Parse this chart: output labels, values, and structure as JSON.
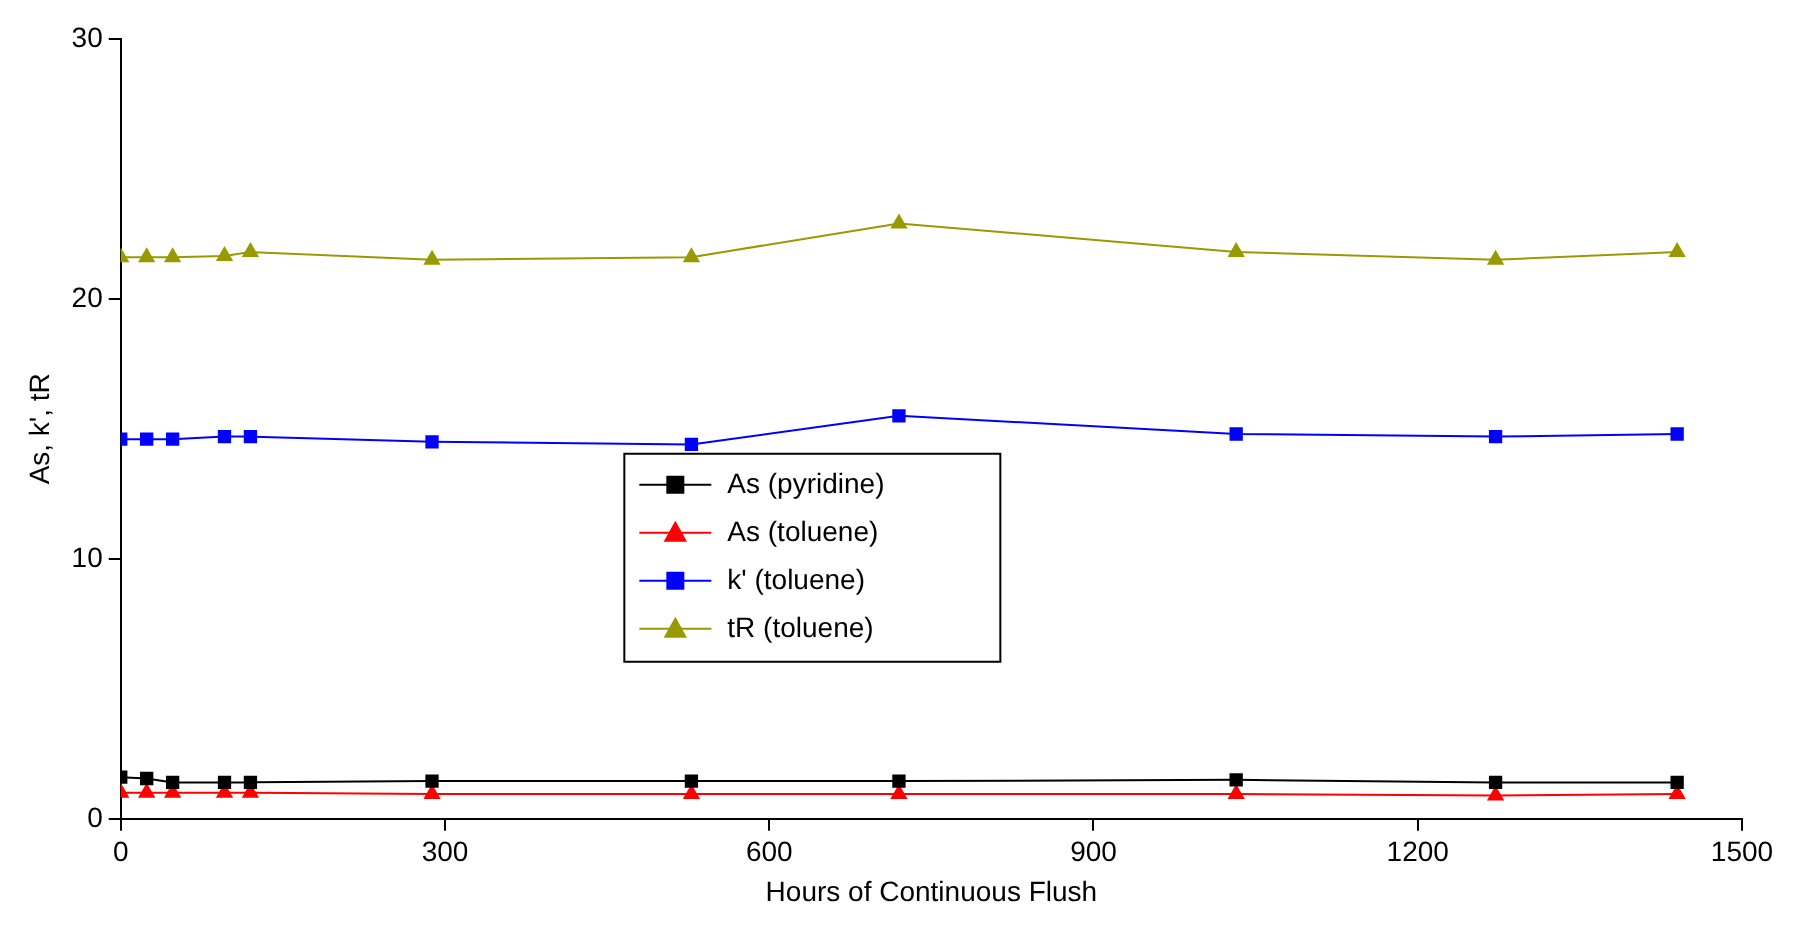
{
  "chart_data": {
    "type": "line",
    "xlabel": "Hours of Continuous Flush",
    "ylabel": "As, k', tR",
    "x": [
      0,
      24,
      48,
      96,
      120,
      288,
      528,
      720,
      1032,
      1272,
      1440
    ],
    "xlim": [
      0,
      1500
    ],
    "xticks": [
      0,
      300,
      600,
      900,
      1200,
      1500
    ],
    "ylim": [
      0,
      30
    ],
    "yticks": [
      0,
      10,
      20,
      30
    ],
    "grid": false,
    "legend": "center",
    "line_style": "solid",
    "series": [
      {
        "name": "As (pyridine)",
        "color": "#000000",
        "marker": "square",
        "values": [
          1.6,
          1.55,
          1.4,
          1.4,
          1.4,
          1.45,
          1.45,
          1.45,
          1.5,
          1.4,
          1.4
        ]
      },
      {
        "name": "As (toluene)",
        "color": "#ff0000",
        "marker": "triangle",
        "values": [
          1.0,
          1.0,
          1.0,
          1.0,
          1.0,
          0.95,
          0.95,
          0.95,
          0.95,
          0.9,
          0.95
        ]
      },
      {
        "name": "k' (toluene)",
        "color": "#0000ff",
        "marker": "square",
        "values": [
          14.6,
          14.6,
          14.6,
          14.7,
          14.7,
          14.5,
          14.4,
          15.5,
          14.8,
          14.7,
          14.8
        ]
      },
      {
        "name": "tR (toluene)",
        "color": "#999900",
        "marker": "triangle",
        "values": [
          21.6,
          21.6,
          21.6,
          21.65,
          21.8,
          21.5,
          21.6,
          22.9,
          21.8,
          21.5,
          21.8
        ]
      }
    ]
  }
}
